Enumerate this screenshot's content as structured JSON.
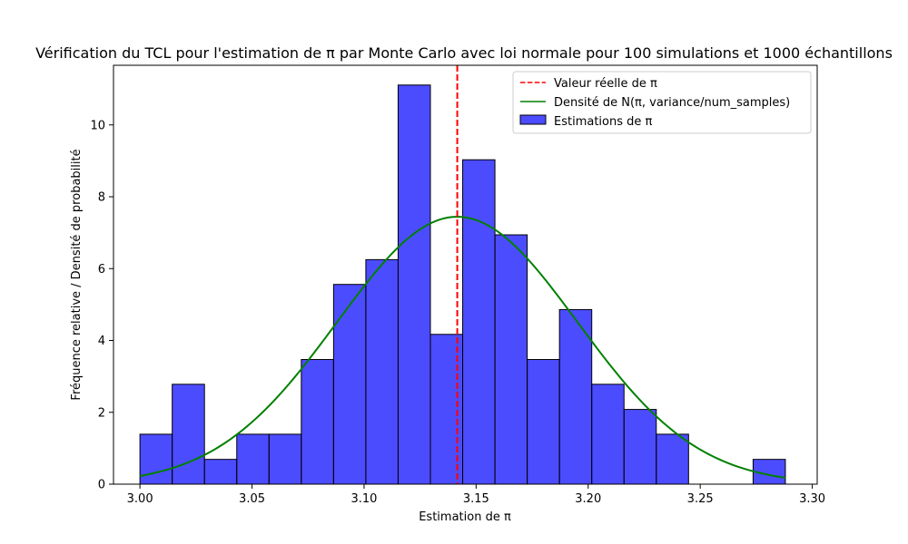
{
  "chart_data": {
    "type": "bar",
    "title": "Vérification du TCL pour l'estimation de π par Monte Carlo avec loi normale pour 100 simulations et 1000 échantillons",
    "xlabel": "Estimation de π",
    "ylabel": "Fréquence relative / Densité de probabilité",
    "xlim": [
      2.9882,
      3.3022
    ],
    "ylim": [
      0,
      11.66
    ],
    "xticks": [
      3.0,
      3.05,
      3.1,
      3.15,
      3.2,
      3.25,
      3.3
    ],
    "xtick_labels": [
      "3.00",
      "3.05",
      "3.10",
      "3.15",
      "3.20",
      "3.25",
      "3.30"
    ],
    "yticks": [
      0,
      2,
      4,
      6,
      8,
      10
    ],
    "ytick_labels": [
      "0",
      "2",
      "4",
      "6",
      "8",
      "10"
    ],
    "grid": false,
    "legend_position": "top-right",
    "colors": {
      "histogram_fill": "#0000ff",
      "histogram_edge": "#000000",
      "density": "#008000",
      "true_value": "#ff0000"
    },
    "histogram": {
      "name": "Estimations de π",
      "bin_edges": [
        3.0,
        3.0144,
        3.0288,
        3.0432,
        3.0576,
        3.072,
        3.0864,
        3.1008,
        3.1152,
        3.1296,
        3.144,
        3.1584,
        3.1728,
        3.1872,
        3.2016,
        3.216,
        3.2304,
        3.2448,
        3.2592,
        3.2736,
        3.288
      ],
      "values": [
        1.39,
        2.78,
        0.69,
        1.39,
        1.39,
        3.47,
        5.56,
        6.25,
        11.11,
        4.17,
        9.03,
        6.94,
        3.47,
        4.86,
        2.78,
        2.08,
        1.39,
        0,
        0,
        0.69
      ]
    },
    "density": {
      "name": "Densité de N(π, variance/num_samples)",
      "mean": 3.1416,
      "std": 0.0536,
      "x_range": [
        3.0,
        3.288
      ]
    },
    "true_value": {
      "name": "Valeur réelle de π",
      "x": 3.14159
    }
  }
}
